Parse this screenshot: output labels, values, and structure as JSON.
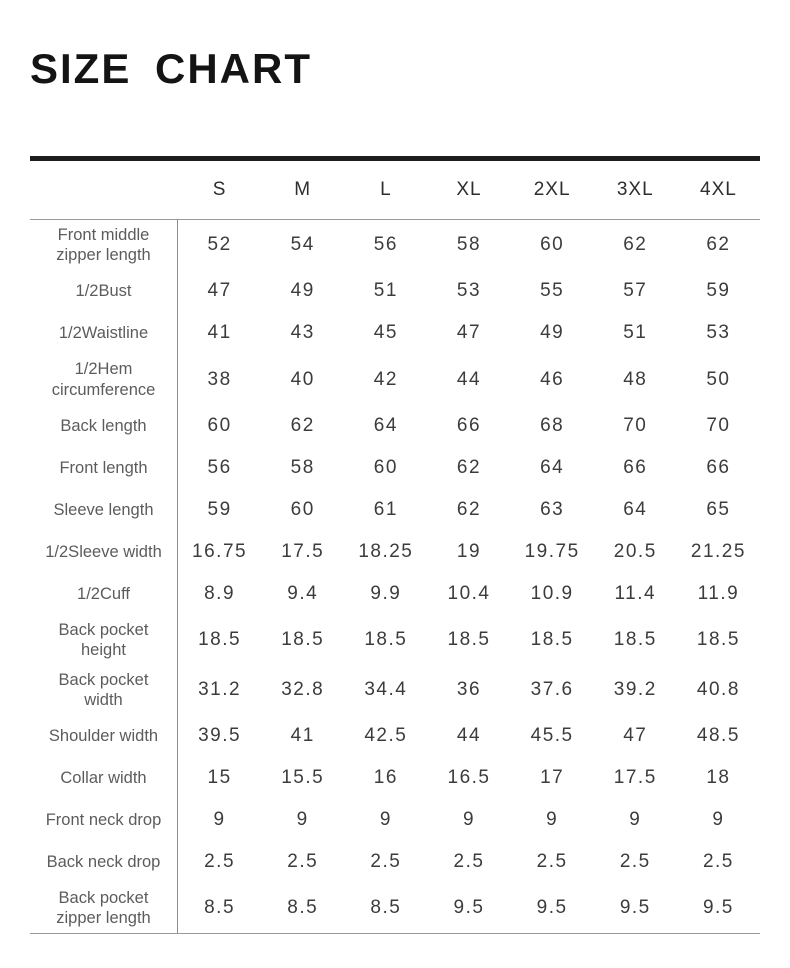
{
  "page": {
    "title": "SIZE CHART"
  },
  "colors": {
    "background": "#ffffff",
    "heading_text": "#141414",
    "header_text": "#2e2e2e",
    "label_text": "#5c5c5c",
    "value_text": "#3c3c3c",
    "rule_thick": "#1d1d1d",
    "rule_thin": "#999999",
    "divider_vertical": "#8c8c8c"
  },
  "chart_data": {
    "type": "table",
    "title": "SIZE CHART",
    "columns": [
      "S",
      "M",
      "L",
      "XL",
      "2XL",
      "3XL",
      "4XL"
    ],
    "rows": [
      {
        "label": "Front middle\nzipper length",
        "values": [
          "52",
          "54",
          "56",
          "58",
          "60",
          "62",
          "62"
        ]
      },
      {
        "label": "1/2Bust",
        "values": [
          "47",
          "49",
          "51",
          "53",
          "55",
          "57",
          "59"
        ]
      },
      {
        "label": "1/2Waistline",
        "values": [
          "41",
          "43",
          "45",
          "47",
          "49",
          "51",
          "53"
        ]
      },
      {
        "label": "1/2Hem\ncircumference",
        "values": [
          "38",
          "40",
          "42",
          "44",
          "46",
          "48",
          "50"
        ]
      },
      {
        "label": "Back length",
        "values": [
          "60",
          "62",
          "64",
          "66",
          "68",
          "70",
          "70"
        ]
      },
      {
        "label": "Front length",
        "values": [
          "56",
          "58",
          "60",
          "62",
          "64",
          "66",
          "66"
        ]
      },
      {
        "label": "Sleeve length",
        "values": [
          "59",
          "60",
          "61",
          "62",
          "63",
          "64",
          "65"
        ]
      },
      {
        "label": "1/2Sleeve width",
        "values": [
          "16.75",
          "17.5",
          "18.25",
          "19",
          "19.75",
          "20.5",
          "21.25"
        ]
      },
      {
        "label": "1/2Cuff",
        "values": [
          "8.9",
          "9.4",
          "9.9",
          "10.4",
          "10.9",
          "11.4",
          "11.9"
        ]
      },
      {
        "label": "Back pocket\nheight",
        "values": [
          "18.5",
          "18.5",
          "18.5",
          "18.5",
          "18.5",
          "18.5",
          "18.5"
        ]
      },
      {
        "label": "Back pocket\nwidth",
        "values": [
          "31.2",
          "32.8",
          "34.4",
          "36",
          "37.6",
          "39.2",
          "40.8"
        ]
      },
      {
        "label": "Shoulder width",
        "values": [
          "39.5",
          "41",
          "42.5",
          "44",
          "45.5",
          "47",
          "48.5"
        ]
      },
      {
        "label": "Collar width",
        "values": [
          "15",
          "15.5",
          "16",
          "16.5",
          "17",
          "17.5",
          "18"
        ]
      },
      {
        "label": "Front neck drop",
        "values": [
          "9",
          "9",
          "9",
          "9",
          "9",
          "9",
          "9"
        ]
      },
      {
        "label": "Back neck drop",
        "values": [
          "2.5",
          "2.5",
          "2.5",
          "2.5",
          "2.5",
          "2.5",
          "2.5"
        ]
      },
      {
        "label": "Back pocket\nzipper length",
        "values": [
          "8.5",
          "8.5",
          "8.5",
          "9.5",
          "9.5",
          "9.5",
          "9.5"
        ]
      }
    ]
  }
}
